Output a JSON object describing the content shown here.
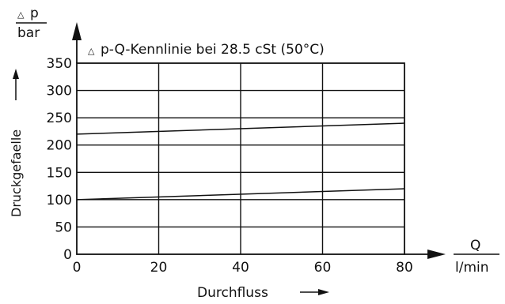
{
  "chart_data": {
    "type": "line",
    "title": "p-Q-Kennlinie bei 28.5 cSt (50°C)",
    "title_symbol": "△",
    "ylabel_symbol": "△",
    "ylabel_top": "p",
    "ylabel_unit": "bar",
    "ylabel_side": "Druckgefaelle",
    "xlabel_top": "Q",
    "xlabel_unit": "l/min",
    "xlabel_bottom": "Durchfluss",
    "xlim": [
      0,
      80
    ],
    "ylim": [
      0,
      350
    ],
    "xticks": [
      0,
      20,
      40,
      60,
      80
    ],
    "yticks": [
      0,
      50,
      100,
      150,
      200,
      250,
      300,
      350
    ],
    "grid": true,
    "series": [
      {
        "x": [
          0,
          80
        ],
        "y": [
          100,
          120
        ]
      },
      {
        "x": [
          0,
          80
        ],
        "y": [
          220,
          240
        ]
      }
    ],
    "colors": {
      "line": "#111111",
      "grid": "#111111",
      "background": "#ffffff"
    }
  }
}
